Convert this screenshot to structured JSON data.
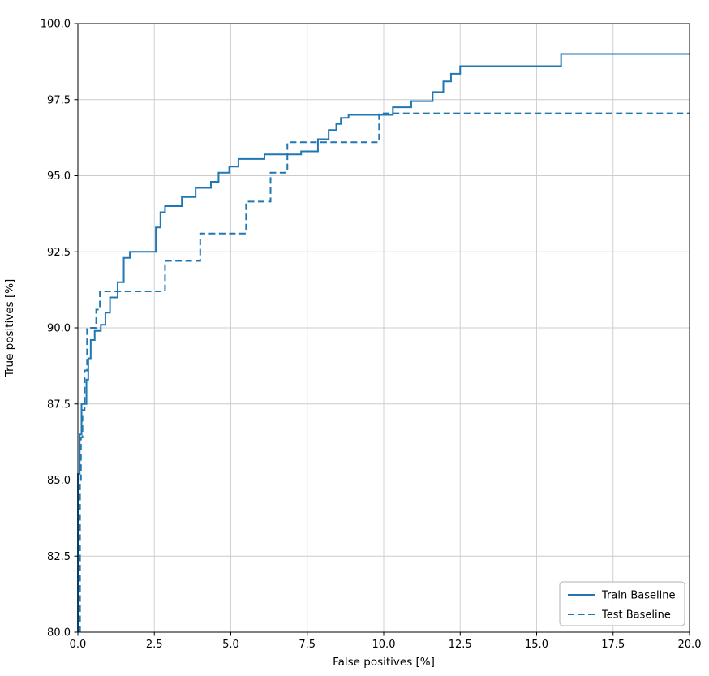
{
  "chart_data": {
    "type": "line",
    "subtype": "step-roc",
    "title": "",
    "xlabel": "False positives [%]",
    "ylabel": "True positives [%]",
    "xlim": [
      0,
      20
    ],
    "ylim": [
      80,
      100
    ],
    "xticks": [
      0.0,
      2.5,
      5.0,
      7.5,
      10.0,
      12.5,
      15.0,
      17.5,
      20.0
    ],
    "yticks": [
      80.0,
      82.5,
      85.0,
      87.5,
      90.0,
      92.5,
      95.0,
      97.5,
      100.0
    ],
    "grid": true,
    "legend_position": "lower right",
    "line_color": "#1f77b4",
    "grid_color": "#cccccc",
    "series": [
      {
        "name": "Train Baseline",
        "style": "solid",
        "points": [
          [
            0.0,
            80.0
          ],
          [
            0.0,
            85.2
          ],
          [
            0.06,
            85.2
          ],
          [
            0.06,
            86.5
          ],
          [
            0.12,
            86.5
          ],
          [
            0.12,
            87.5
          ],
          [
            0.28,
            87.5
          ],
          [
            0.28,
            88.3
          ],
          [
            0.34,
            88.3
          ],
          [
            0.34,
            89.0
          ],
          [
            0.42,
            89.0
          ],
          [
            0.42,
            89.6
          ],
          [
            0.55,
            89.6
          ],
          [
            0.55,
            89.9
          ],
          [
            0.75,
            89.9
          ],
          [
            0.75,
            90.1
          ],
          [
            0.9,
            90.1
          ],
          [
            0.9,
            90.5
          ],
          [
            1.05,
            90.5
          ],
          [
            1.05,
            91.0
          ],
          [
            1.3,
            91.0
          ],
          [
            1.3,
            91.5
          ],
          [
            1.5,
            91.5
          ],
          [
            1.5,
            92.3
          ],
          [
            1.7,
            92.3
          ],
          [
            1.7,
            92.5
          ],
          [
            2.55,
            92.5
          ],
          [
            2.55,
            93.3
          ],
          [
            2.7,
            93.3
          ],
          [
            2.7,
            93.8
          ],
          [
            2.85,
            93.8
          ],
          [
            2.85,
            94.0
          ],
          [
            3.4,
            94.0
          ],
          [
            3.4,
            94.3
          ],
          [
            3.85,
            94.3
          ],
          [
            3.85,
            94.6
          ],
          [
            4.35,
            94.6
          ],
          [
            4.35,
            94.8
          ],
          [
            4.6,
            94.8
          ],
          [
            4.6,
            95.1
          ],
          [
            4.95,
            95.1
          ],
          [
            4.95,
            95.3
          ],
          [
            5.25,
            95.3
          ],
          [
            5.25,
            95.55
          ],
          [
            6.1,
            95.55
          ],
          [
            6.1,
            95.7
          ],
          [
            7.3,
            95.7
          ],
          [
            7.3,
            95.8
          ],
          [
            7.85,
            95.8
          ],
          [
            7.85,
            96.2
          ],
          [
            8.2,
            96.2
          ],
          [
            8.2,
            96.5
          ],
          [
            8.45,
            96.5
          ],
          [
            8.45,
            96.7
          ],
          [
            8.6,
            96.7
          ],
          [
            8.6,
            96.9
          ],
          [
            8.85,
            96.9
          ],
          [
            8.85,
            97.0
          ],
          [
            10.3,
            97.0
          ],
          [
            10.3,
            97.25
          ],
          [
            10.9,
            97.25
          ],
          [
            10.9,
            97.45
          ],
          [
            11.6,
            97.45
          ],
          [
            11.6,
            97.75
          ],
          [
            11.95,
            97.75
          ],
          [
            11.95,
            98.1
          ],
          [
            12.2,
            98.1
          ],
          [
            12.2,
            98.35
          ],
          [
            12.5,
            98.35
          ],
          [
            12.5,
            98.6
          ],
          [
            15.8,
            98.6
          ],
          [
            15.8,
            99.0
          ],
          [
            20.0,
            99.0
          ]
        ]
      },
      {
        "name": "Test Baseline",
        "style": "dashed",
        "points": [
          [
            0.07,
            80.0
          ],
          [
            0.07,
            85.0
          ],
          [
            0.1,
            85.0
          ],
          [
            0.1,
            86.4
          ],
          [
            0.15,
            86.4
          ],
          [
            0.15,
            87.3
          ],
          [
            0.22,
            87.3
          ],
          [
            0.22,
            88.6
          ],
          [
            0.3,
            88.6
          ],
          [
            0.3,
            90.0
          ],
          [
            0.6,
            90.0
          ],
          [
            0.6,
            90.6
          ],
          [
            0.72,
            90.6
          ],
          [
            0.72,
            91.2
          ],
          [
            2.85,
            91.2
          ],
          [
            2.85,
            92.2
          ],
          [
            4.0,
            92.2
          ],
          [
            4.0,
            93.1
          ],
          [
            5.5,
            93.1
          ],
          [
            5.5,
            94.15
          ],
          [
            6.3,
            94.15
          ],
          [
            6.3,
            95.1
          ],
          [
            6.85,
            95.1
          ],
          [
            6.85,
            96.1
          ],
          [
            9.85,
            96.1
          ],
          [
            9.85,
            97.05
          ],
          [
            20.0,
            97.05
          ]
        ]
      }
    ]
  }
}
